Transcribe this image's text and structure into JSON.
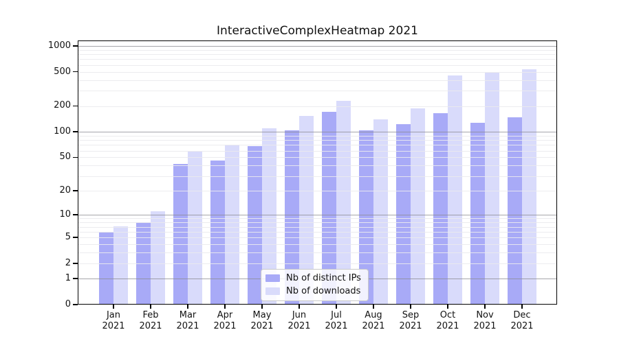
{
  "chart_data": {
    "type": "bar",
    "title": "InteractiveComplexHeatmap 2021",
    "categories": [
      "Jan",
      "Feb",
      "Mar",
      "Apr",
      "May",
      "Jun",
      "Jul",
      "Aug",
      "Sep",
      "Oct",
      "Nov",
      "Dec"
    ],
    "category_year": "2021",
    "series": [
      {
        "name": "Nb of distinct IPs",
        "color": "#a8aaf7",
        "values": [
          6,
          8,
          42,
          46,
          68,
          103,
          170,
          103,
          123,
          165,
          128,
          148
        ]
      },
      {
        "name": "Nb of downloads",
        "color": "#d9dbfb",
        "values": [
          7,
          11,
          58,
          71,
          110,
          152,
          231,
          140,
          186,
          450,
          485,
          535
        ]
      }
    ],
    "xlabel": "",
    "ylabel": "",
    "y_scale": "log10(value+1)",
    "y_ticks": [
      0,
      1,
      2,
      5,
      10,
      20,
      50,
      100,
      200,
      500,
      1000
    ],
    "ylim": [
      0,
      1130
    ],
    "grid": "horizontal minor log gridlines; darker lines at 1, 10, 100, 1000; drawn over bars",
    "legend_position": "lower center inside plot",
    "colors": {
      "background": "#ffffff",
      "axis_spine": "#000000",
      "major_grid": "#8c8c92",
      "minor_grid": "#eaeaee",
      "text": "#111111"
    }
  }
}
